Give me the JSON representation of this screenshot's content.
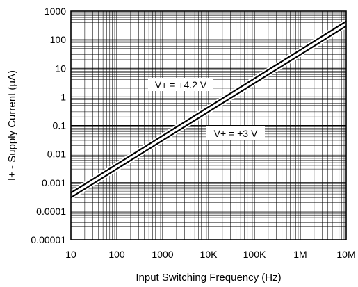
{
  "chart_data": {
    "type": "line",
    "xlabel": "Input Switching Frequency (Hz)",
    "ylabel": "I+ - Supply Current (μA)",
    "xscale": "log",
    "yscale": "log",
    "xlim": [
      10,
      10000000
    ],
    "ylim": [
      1e-05,
      1000
    ],
    "grid": true,
    "x_tick_labels": [
      "10",
      "100",
      "1000",
      "10K",
      "100K",
      "1M",
      "10M"
    ],
    "y_tick_labels": [
      "1000",
      "100",
      "10",
      "1",
      "0.1",
      "0.01",
      "0.001",
      "0.0001",
      "0.00001"
    ],
    "series": [
      {
        "name": "V+ = +4.2 V",
        "x": [
          10,
          10000000
        ],
        "y": [
          0.00044,
          440
        ]
      },
      {
        "name": "V+ = +3 V",
        "x": [
          10,
          10000000
        ],
        "y": [
          0.0003,
          300
        ]
      }
    ],
    "annotations": [
      {
        "text": "V+ = +4.2 V"
      },
      {
        "text": "V+ = +3 V"
      }
    ],
    "colors": {
      "line": "#000000",
      "grid": "#000000",
      "background": "#ffffff"
    }
  }
}
